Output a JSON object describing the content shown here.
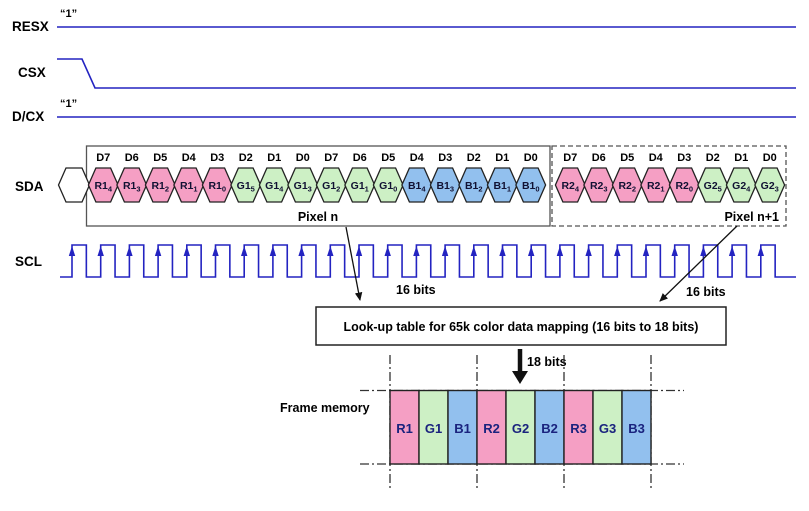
{
  "signals": {
    "resx": {
      "label": "RESX",
      "annotation": "“1”"
    },
    "csx": {
      "label": "CSX"
    },
    "dcx": {
      "label": "D/CX",
      "annotation": "“1”"
    },
    "sda": {
      "label": "SDA"
    },
    "scl": {
      "label": "SCL"
    }
  },
  "sda_stream": {
    "bit_headers": [
      "D7",
      "D6",
      "D5",
      "D4",
      "D3",
      "D2",
      "D1",
      "D0",
      "D7",
      "D6",
      "D5",
      "D4",
      "D3",
      "D2",
      "D1",
      "D0",
      "D7",
      "D6",
      "D5",
      "D4",
      "D3",
      "D2",
      "D1",
      "D0"
    ],
    "bits": [
      {
        "name": "R1",
        "sub": "4",
        "color_key": "red"
      },
      {
        "name": "R1",
        "sub": "3",
        "color_key": "red"
      },
      {
        "name": "R1",
        "sub": "2",
        "color_key": "red"
      },
      {
        "name": "R1",
        "sub": "1",
        "color_key": "red"
      },
      {
        "name": "R1",
        "sub": "0",
        "color_key": "red"
      },
      {
        "name": "G1",
        "sub": "5",
        "color_key": "green"
      },
      {
        "name": "G1",
        "sub": "4",
        "color_key": "green"
      },
      {
        "name": "G1",
        "sub": "3",
        "color_key": "green"
      },
      {
        "name": "G1",
        "sub": "2",
        "color_key": "green"
      },
      {
        "name": "G1",
        "sub": "1",
        "color_key": "green"
      },
      {
        "name": "G1",
        "sub": "0",
        "color_key": "green"
      },
      {
        "name": "B1",
        "sub": "4",
        "color_key": "blue"
      },
      {
        "name": "B1",
        "sub": "3",
        "color_key": "blue"
      },
      {
        "name": "B1",
        "sub": "2",
        "color_key": "blue"
      },
      {
        "name": "B1",
        "sub": "1",
        "color_key": "blue"
      },
      {
        "name": "B1",
        "sub": "0",
        "color_key": "blue"
      },
      {
        "name": "R2",
        "sub": "4",
        "color_key": "red"
      },
      {
        "name": "R2",
        "sub": "3",
        "color_key": "red"
      },
      {
        "name": "R2",
        "sub": "2",
        "color_key": "red"
      },
      {
        "name": "R2",
        "sub": "1",
        "color_key": "red"
      },
      {
        "name": "R2",
        "sub": "0",
        "color_key": "red"
      },
      {
        "name": "G2",
        "sub": "5",
        "color_key": "green"
      },
      {
        "name": "G2",
        "sub": "4",
        "color_key": "green"
      },
      {
        "name": "G2",
        "sub": "3",
        "color_key": "green"
      }
    ],
    "pixel_n_label": "Pixel n",
    "pixel_n_plus_1_label": "Pixel n+1",
    "clock_pulses": 25
  },
  "annotations": {
    "left_bits": "16 bits",
    "right_bits": "16 bits",
    "lut": "Look-up table for 65k color data mapping (16 bits to 18 bits)",
    "bits_18": "18 bits"
  },
  "frame_memory": {
    "label": "Frame memory",
    "cells": [
      {
        "label": "R1",
        "color_key": "red"
      },
      {
        "label": "G1",
        "color_key": "green"
      },
      {
        "label": "B1",
        "color_key": "blue"
      },
      {
        "label": "R2",
        "color_key": "red"
      },
      {
        "label": "G2",
        "color_key": "green"
      },
      {
        "label": "B2",
        "color_key": "blue"
      },
      {
        "label": "R3",
        "color_key": "red"
      },
      {
        "label": "G3",
        "color_key": "green"
      },
      {
        "label": "B3",
        "color_key": "blue"
      }
    ]
  },
  "colors": {
    "red": "#f59fc4",
    "green": "#cdf0c5",
    "blue": "#92c0ee",
    "waveform": "#2323c1",
    "hex_text": "#111133",
    "cell_text": "#1a237e"
  }
}
